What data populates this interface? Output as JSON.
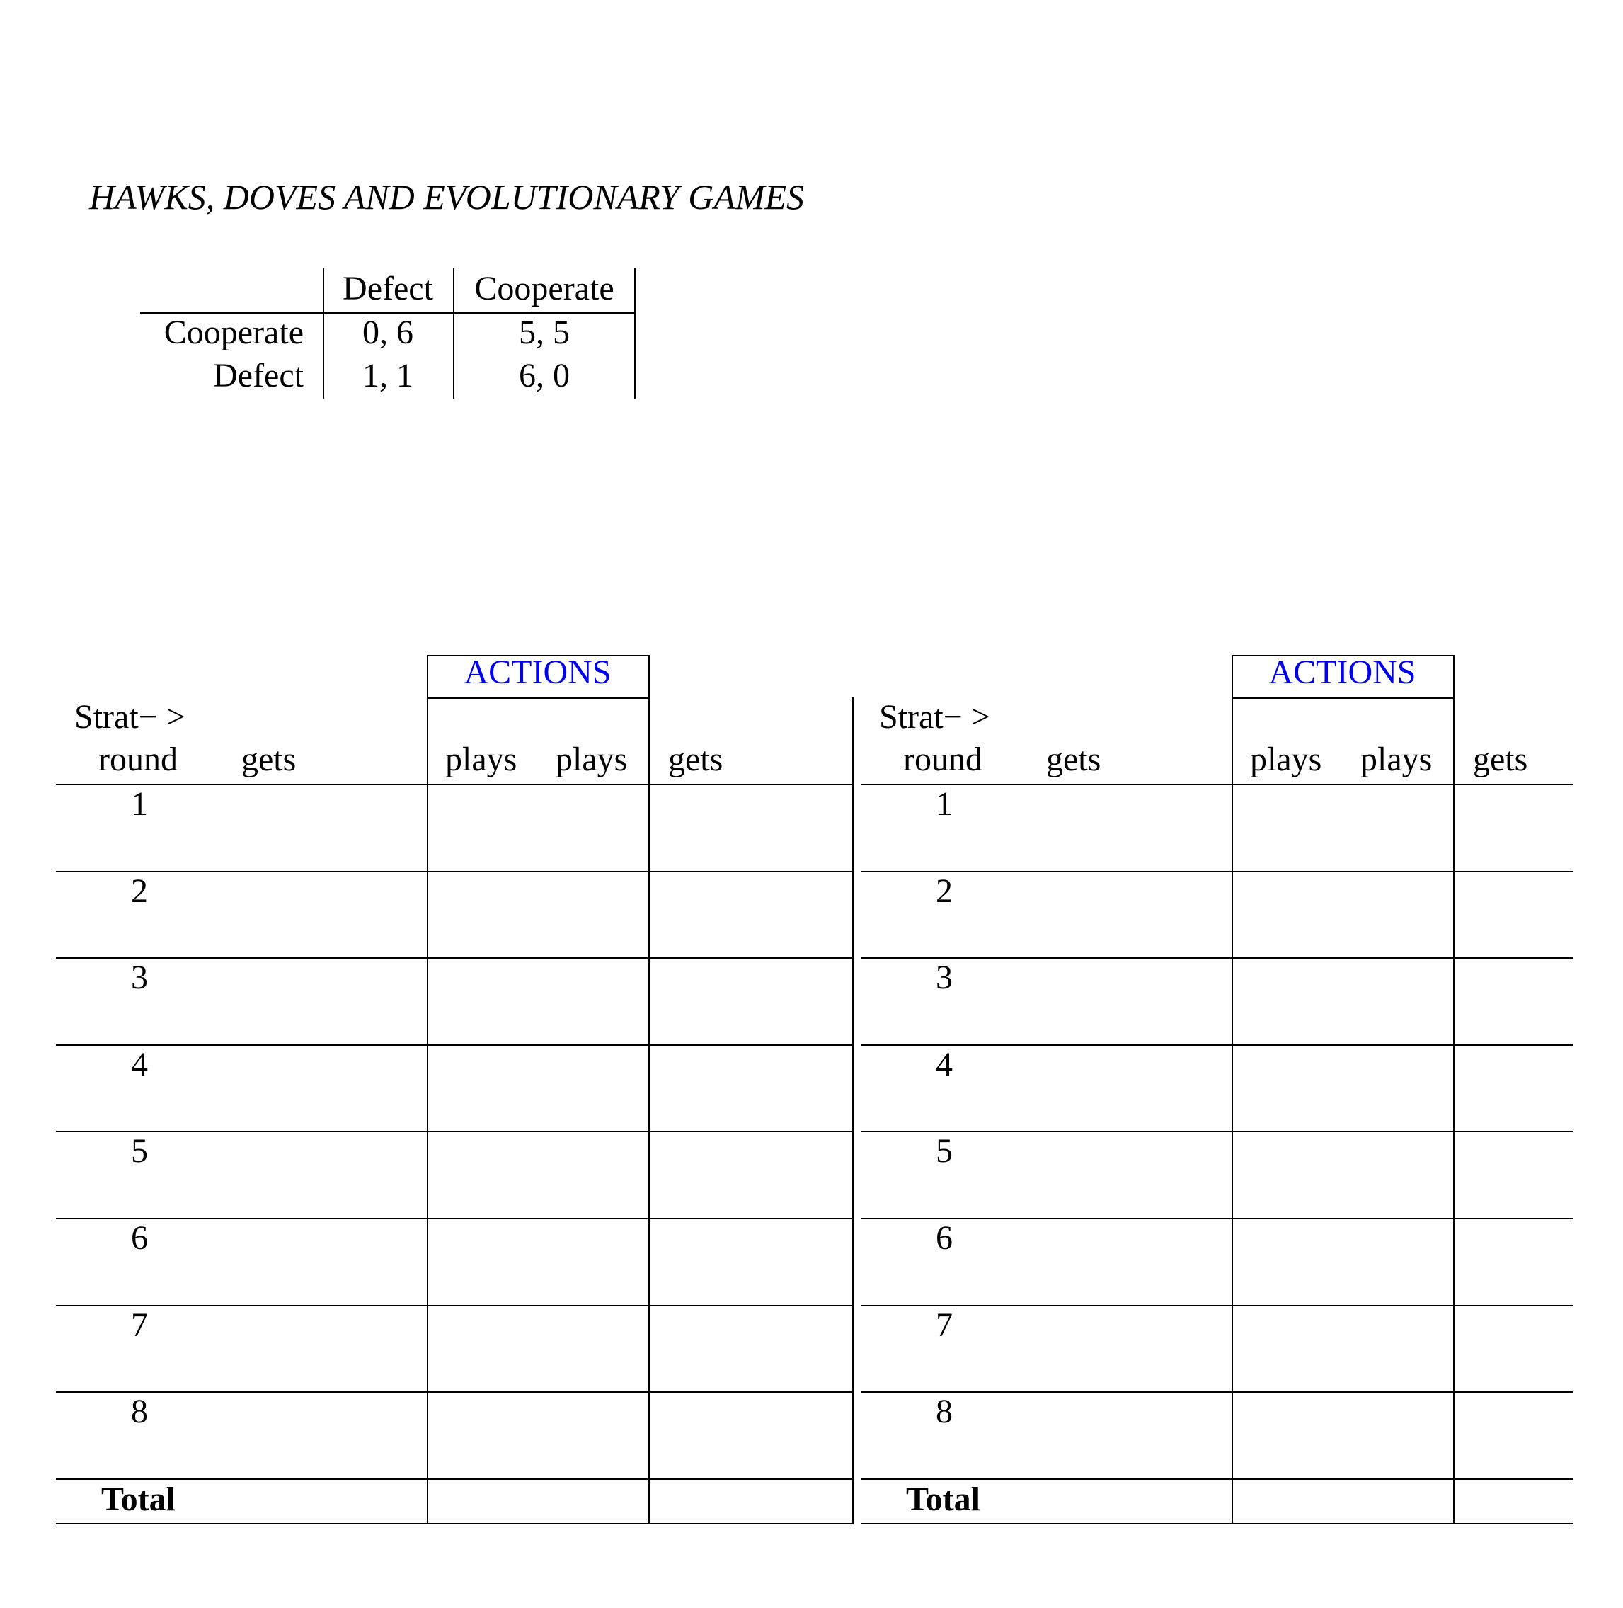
{
  "title": "HAWKS, DOVES AND EVOLUTIONARY GAMES",
  "payoff_matrix": {
    "column_headers": [
      "Defect",
      "Cooperate"
    ],
    "rows": [
      {
        "label": "Cooperate",
        "cells": [
          "0, 6",
          "5, 5"
        ]
      },
      {
        "label": "Defect",
        "cells": [
          "1, 1",
          "6, 0"
        ]
      }
    ]
  },
  "score_tables": [
    {
      "actions_label": "ACTIONS",
      "strat_label": "Strat− >",
      "headers": [
        "round",
        "gets",
        "plays",
        "plays",
        "gets"
      ],
      "rounds": [
        "1",
        "2",
        "3",
        "4",
        "5",
        "6",
        "7",
        "8"
      ],
      "total_label": "Total"
    },
    {
      "actions_label": "ACTIONS",
      "strat_label": "Strat− >",
      "headers": [
        "round",
        "gets",
        "plays",
        "plays",
        "gets"
      ],
      "rounds": [
        "1",
        "2",
        "3",
        "4",
        "5",
        "6",
        "7",
        "8"
      ],
      "total_label": "Total"
    }
  ],
  "colors": {
    "actions_label": "#0000ee"
  }
}
